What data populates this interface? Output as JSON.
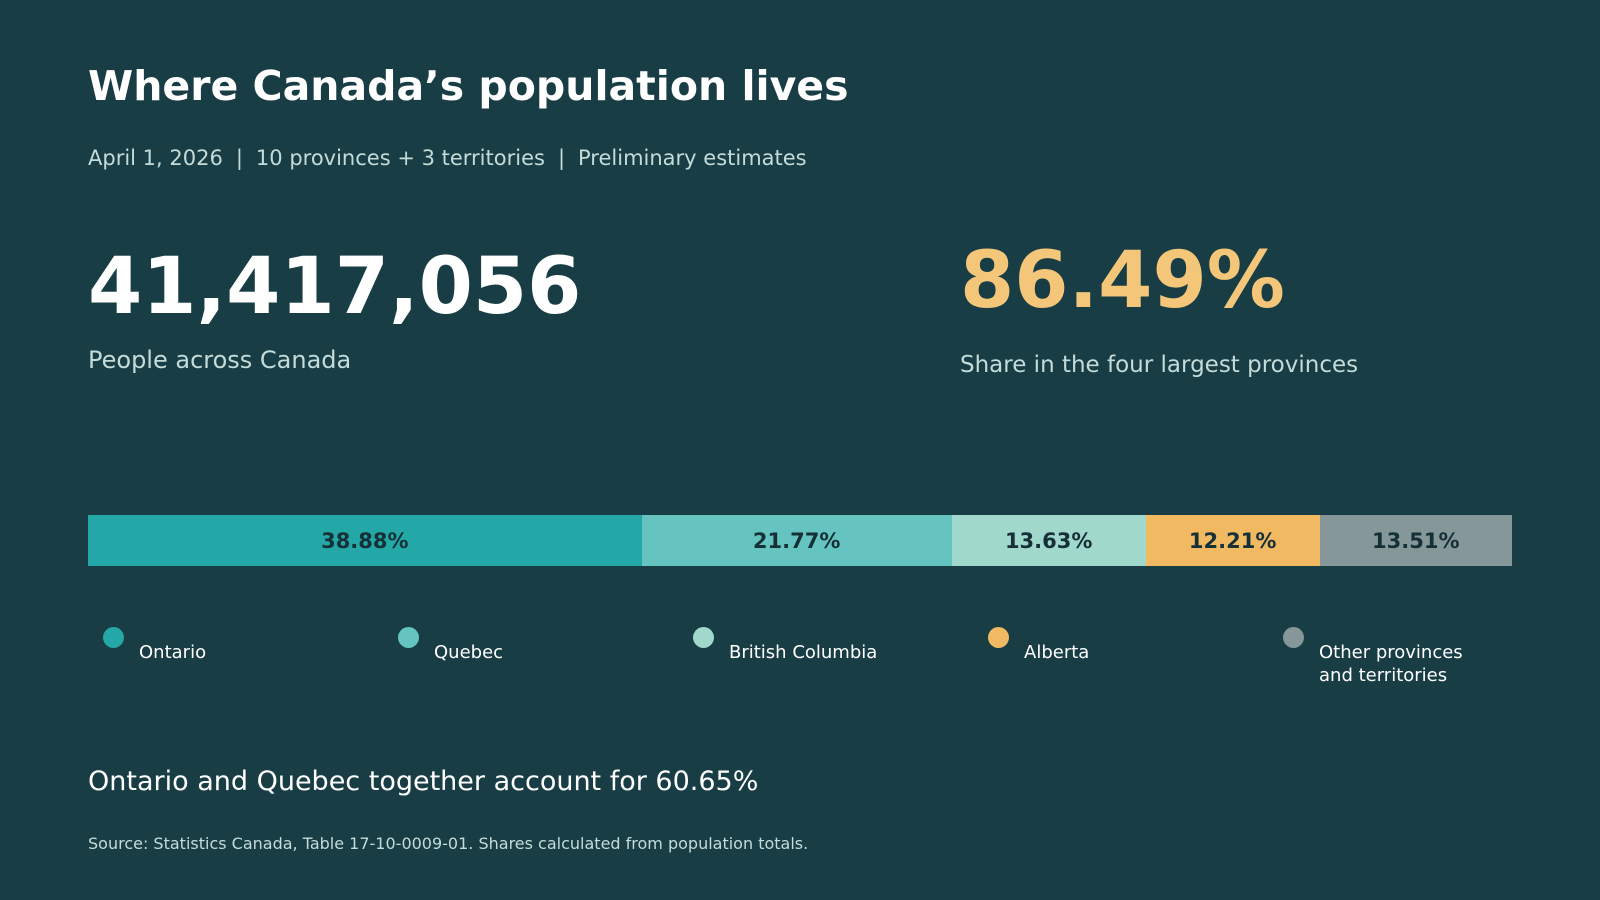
{
  "header": {
    "title": "Where Canada’s population lives",
    "subtitle_parts": [
      "April 1, 2026",
      "10 provinces + 3 territories",
      "Preliminary estimates"
    ],
    "subtitle_separator": "|"
  },
  "kpis": {
    "population": {
      "value": "41,417,056",
      "label": "People across Canada"
    },
    "top_four_share": {
      "value": "86.49%",
      "label": "Share in the four largest provinces"
    }
  },
  "chart_data": {
    "type": "bar",
    "orientation": "horizontal-stacked-100",
    "unit": "%",
    "segments": [
      {
        "name": "Ontario",
        "value": 38.88,
        "label": "38.88%",
        "color": "#24a8a7"
      },
      {
        "name": "Quebec",
        "value": 21.77,
        "label": "21.77%",
        "color": "#66c4c0"
      },
      {
        "name": "British Columbia",
        "value": 13.63,
        "label": "13.63%",
        "color": "#a0d8cc"
      },
      {
        "name": "Alberta",
        "value": 12.21,
        "label": "12.21%",
        "color": "#f0b962"
      },
      {
        "name": "Other provinces and territories",
        "legend_lines": [
          "Other provinces",
          "and territories"
        ],
        "value": 13.51,
        "label": "13.51%",
        "color": "#859799"
      }
    ],
    "legend_placement": "bottom",
    "grid": false
  },
  "footer": {
    "note": "Ontario and Quebec together account for 60.65%",
    "source": "Source: Statistics Canada, Table 17-10-0009-01. Shares calculated from population totals."
  }
}
